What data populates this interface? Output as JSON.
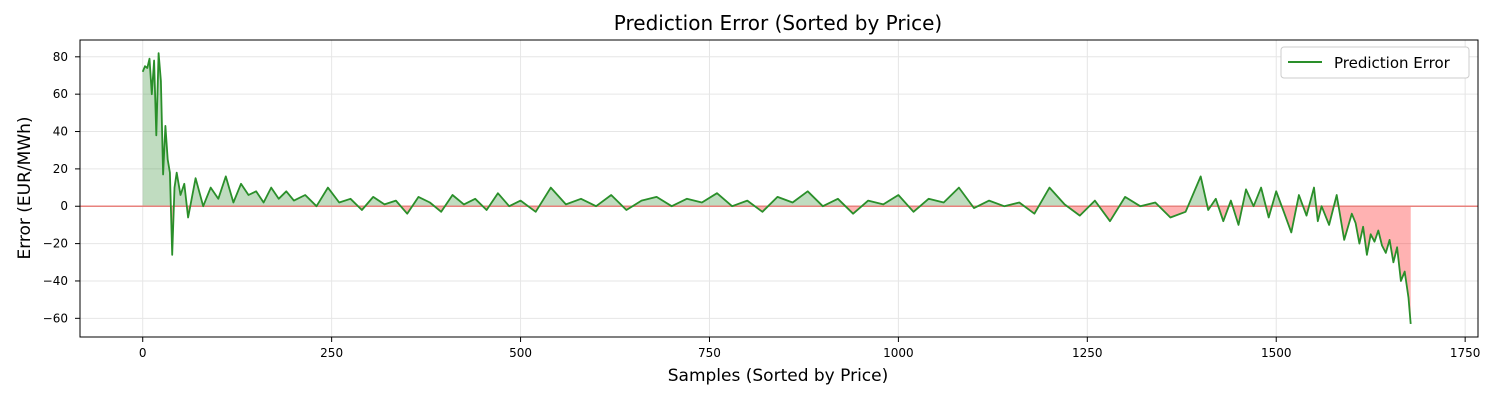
{
  "chart_data": {
    "type": "line",
    "title": "Prediction Error (Sorted by Price)",
    "xlabel": "Samples (Sorted by Price)",
    "ylabel": "Error (EUR/MWh)",
    "xlim": [
      -83,
      1767
    ],
    "ylim": [
      -70,
      89
    ],
    "xticks": [
      0,
      250,
      500,
      750,
      1000,
      1250,
      1500,
      1750
    ],
    "yticks": [
      -60,
      -40,
      -20,
      0,
      20,
      40,
      60,
      80
    ],
    "grid": true,
    "legend": {
      "position": "top-right",
      "entries": [
        "Prediction Error"
      ]
    },
    "zero_line": {
      "y": 0,
      "color": "#e8827d"
    },
    "fill": {
      "positive_color": "#2e8b2e",
      "negative_color": "#ff0000",
      "alpha": 0.3
    },
    "series": [
      {
        "name": "Prediction Error",
        "color": "#2a8f2a",
        "x": [
          0,
          3,
          6,
          9,
          12,
          15,
          18,
          21,
          24,
          27,
          30,
          33,
          36,
          39,
          42,
          45,
          50,
          55,
          60,
          70,
          80,
          90,
          100,
          110,
          120,
          130,
          140,
          150,
          160,
          170,
          180,
          190,
          200,
          215,
          230,
          245,
          260,
          275,
          290,
          305,
          320,
          335,
          350,
          365,
          380,
          395,
          410,
          425,
          440,
          455,
          470,
          485,
          500,
          520,
          540,
          560,
          580,
          600,
          620,
          640,
          660,
          680,
          700,
          720,
          740,
          760,
          780,
          800,
          820,
          840,
          860,
          880,
          900,
          920,
          940,
          960,
          980,
          1000,
          1020,
          1040,
          1060,
          1080,
          1100,
          1120,
          1140,
          1160,
          1180,
          1200,
          1220,
          1240,
          1260,
          1280,
          1300,
          1320,
          1340,
          1360,
          1380,
          1400,
          1410,
          1420,
          1430,
          1440,
          1450,
          1460,
          1470,
          1480,
          1490,
          1500,
          1510,
          1520,
          1530,
          1540,
          1550,
          1555,
          1560,
          1570,
          1580,
          1590,
          1600,
          1605,
          1610,
          1615,
          1620,
          1625,
          1630,
          1635,
          1640,
          1645,
          1650,
          1655,
          1660,
          1665,
          1670,
          1675,
          1678
        ],
        "y": [
          72,
          75,
          74,
          79,
          60,
          78,
          38,
          82,
          67,
          17,
          43,
          25,
          18,
          -26,
          10,
          18,
          6,
          12,
          -6,
          15,
          0,
          10,
          4,
          16,
          2,
          12,
          6,
          8,
          2,
          10,
          4,
          8,
          3,
          6,
          0,
          10,
          2,
          4,
          -2,
          5,
          1,
          3,
          -4,
          5,
          2,
          -3,
          6,
          1,
          4,
          -2,
          7,
          0,
          3,
          -3,
          10,
          1,
          4,
          0,
          6,
          -2,
          3,
          5,
          0,
          4,
          2,
          7,
          0,
          3,
          -3,
          5,
          2,
          8,
          0,
          4,
          -4,
          3,
          1,
          6,
          -3,
          4,
          2,
          10,
          -1,
          3,
          0,
          2,
          -4,
          10,
          1,
          -5,
          3,
          -8,
          5,
          0,
          2,
          -6,
          -3,
          16,
          -2,
          4,
          -8,
          3,
          -10,
          9,
          0,
          10,
          -6,
          8,
          -3,
          -14,
          6,
          -5,
          10,
          -8,
          0,
          -10,
          6,
          -18,
          -4,
          -9,
          -20,
          -11,
          -26,
          -15,
          -19,
          -13,
          -21,
          -25,
          -18,
          -30,
          -22,
          -40,
          -35,
          -49,
          -63
        ]
      }
    ]
  }
}
